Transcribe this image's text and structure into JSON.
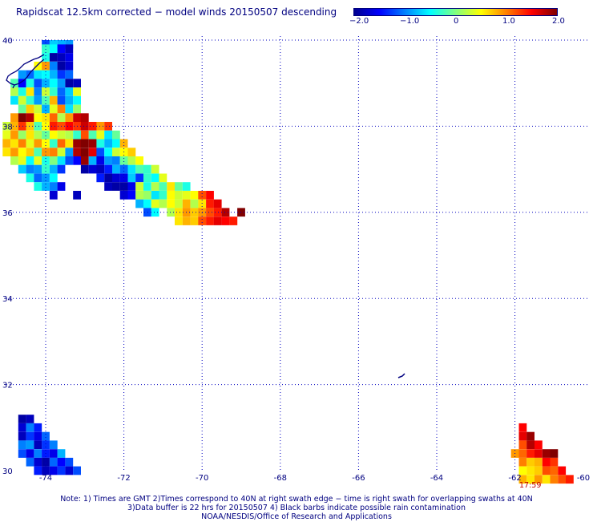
{
  "title": "Rapidscat 12.5km corrected − model winds 20150507 descending",
  "colorbar": {
    "labels": [
      "−2.0",
      "−1.0",
      "0",
      "1.0",
      "2.0"
    ],
    "min": -2.0,
    "max": 2.0,
    "colors": [
      "#00008f",
      "#0000ff",
      "#0080ff",
      "#00ffff",
      "#80ff80",
      "#ffff00",
      "#ff8000",
      "#ff0000",
      "#800000"
    ]
  },
  "map": {
    "lon_range": [
      -75,
      -60
    ],
    "lat_range": [
      30,
      40
    ],
    "lon_ticks": [
      "-74",
      "-72",
      "-70",
      "-68",
      "-66",
      "-64",
      "-62",
      "-60"
    ],
    "lat_ticks": [
      "40",
      "38",
      "36",
      "34",
      "32",
      "30"
    ],
    "gridline_color": "#0000c0"
  },
  "swath_cells": [
    [
      -74.0,
      39.9,
      -1.2
    ],
    [
      -73.8,
      39.9,
      -0.7
    ],
    [
      -73.6,
      39.9,
      -0.8
    ],
    [
      -73.4,
      39.9,
      -0.9
    ],
    [
      -74.0,
      39.8,
      -0.3
    ],
    [
      -73.8,
      39.8,
      -0.5
    ],
    [
      -73.6,
      39.8,
      -1.5
    ],
    [
      -73.4,
      39.8,
      -1.8
    ],
    [
      -74.0,
      39.6,
      -0.4
    ],
    [
      -73.8,
      39.6,
      -1.9
    ],
    [
      -73.6,
      39.6,
      -1.8
    ],
    [
      -73.4,
      39.6,
      -1.6
    ],
    [
      -74.2,
      39.4,
      0.5
    ],
    [
      -74.0,
      39.4,
      0.9
    ],
    [
      -73.8,
      39.4,
      -1.0
    ],
    [
      -73.6,
      39.4,
      -1.9
    ],
    [
      -73.4,
      39.4,
      -1.7
    ],
    [
      -74.6,
      39.2,
      -0.9
    ],
    [
      -74.4,
      39.2,
      -1.1
    ],
    [
      -74.2,
      39.2,
      -0.6
    ],
    [
      -74.0,
      39.2,
      -0.5
    ],
    [
      -73.8,
      39.2,
      -0.8
    ],
    [
      -73.6,
      39.2,
      -1.3
    ],
    [
      -73.4,
      39.2,
      -1.1
    ],
    [
      -74.8,
      39.0,
      -0.2
    ],
    [
      -74.6,
      39.0,
      -1.5
    ],
    [
      -74.4,
      39.0,
      -0.4
    ],
    [
      -74.2,
      39.0,
      -1.2
    ],
    [
      -74.0,
      39.0,
      -0.8
    ],
    [
      -73.8,
      39.0,
      -0.5
    ],
    [
      -73.6,
      39.0,
      -0.9
    ],
    [
      -73.4,
      39.0,
      -1.9
    ],
    [
      -73.2,
      39.0,
      -1.8
    ],
    [
      -74.8,
      38.8,
      0.2
    ],
    [
      -74.6,
      38.8,
      -0.4
    ],
    [
      -74.4,
      38.8,
      0.6
    ],
    [
      -74.2,
      38.8,
      -1.0
    ],
    [
      -74.0,
      38.8,
      0.3
    ],
    [
      -73.8,
      38.8,
      -0.3
    ],
    [
      -73.6,
      38.8,
      -1.1
    ],
    [
      -73.4,
      38.8,
      -0.7
    ],
    [
      -73.2,
      38.8,
      0.4
    ],
    [
      -74.8,
      38.6,
      -0.6
    ],
    [
      -74.6,
      38.6,
      0.3
    ],
    [
      -74.4,
      38.6,
      -0.3
    ],
    [
      -74.2,
      38.6,
      -0.9
    ],
    [
      -74.0,
      38.6,
      -0.2
    ],
    [
      -73.8,
      38.6,
      0.8
    ],
    [
      -73.6,
      38.6,
      -1.2
    ],
    [
      -73.4,
      38.6,
      -0.8
    ],
    [
      -73.2,
      38.6,
      -0.5
    ],
    [
      -74.6,
      38.4,
      -0.1
    ],
    [
      -74.4,
      38.4,
      0.7
    ],
    [
      -74.2,
      38.4,
      0.3
    ],
    [
      -74.0,
      38.4,
      -0.8
    ],
    [
      -73.8,
      38.4,
      0.4
    ],
    [
      -73.6,
      38.4,
      1.0
    ],
    [
      -73.4,
      38.4,
      -0.6
    ],
    [
      -73.2,
      38.4,
      0.1
    ],
    [
      -74.8,
      38.2,
      0.9
    ],
    [
      -74.6,
      38.2,
      2.0
    ],
    [
      -74.4,
      38.2,
      1.8
    ],
    [
      -74.2,
      38.2,
      0.5
    ],
    [
      -74.0,
      38.2,
      0.6
    ],
    [
      -73.8,
      38.2,
      1.1
    ],
    [
      -73.6,
      38.2,
      0.2
    ],
    [
      -73.4,
      38.2,
      0.9
    ],
    [
      -73.2,
      38.2,
      1.7
    ],
    [
      -73.0,
      38.2,
      1.8
    ],
    [
      -75.0,
      38.0,
      0.3
    ],
    [
      -74.8,
      38.0,
      0.8
    ],
    [
      -74.6,
      38.0,
      1.3
    ],
    [
      -74.4,
      38.0,
      0.7
    ],
    [
      -74.2,
      38.0,
      -0.2
    ],
    [
      -74.0,
      38.0,
      0.5
    ],
    [
      -73.8,
      38.0,
      1.4
    ],
    [
      -73.6,
      38.0,
      1.2
    ],
    [
      -73.4,
      38.0,
      1.5
    ],
    [
      -73.2,
      38.0,
      1.3
    ],
    [
      -73.0,
      38.0,
      1.7
    ],
    [
      -72.8,
      38.0,
      1.4
    ],
    [
      -72.6,
      38.0,
      0.9
    ],
    [
      -72.4,
      38.0,
      1.3
    ],
    [
      -75.0,
      37.8,
      0.4
    ],
    [
      -74.8,
      37.8,
      0.9
    ],
    [
      -74.6,
      37.8,
      0.1
    ],
    [
      -74.4,
      37.8,
      0.6
    ],
    [
      -74.2,
      37.8,
      0.2
    ],
    [
      -74.0,
      37.8,
      -0.1
    ],
    [
      -73.8,
      37.8,
      0.5
    ],
    [
      -73.6,
      37.8,
      0.3
    ],
    [
      -73.4,
      37.8,
      0.2
    ],
    [
      -73.2,
      37.8,
      -0.3
    ],
    [
      -73.0,
      37.8,
      1.2
    ],
    [
      -72.8,
      37.8,
      -0.2
    ],
    [
      -72.6,
      37.8,
      0.4
    ],
    [
      -72.4,
      37.8,
      -0.6
    ],
    [
      -72.2,
      37.8,
      -0.1
    ],
    [
      -75.0,
      37.6,
      0.8
    ],
    [
      -74.8,
      37.6,
      0.6
    ],
    [
      -74.6,
      37.6,
      1.0
    ],
    [
      -74.4,
      37.6,
      0.4
    ],
    [
      -74.2,
      37.6,
      0.9
    ],
    [
      -74.0,
      37.6,
      0.5
    ],
    [
      -73.8,
      37.6,
      -0.3
    ],
    [
      -73.6,
      37.6,
      1.1
    ],
    [
      -73.4,
      37.6,
      0.6
    ],
    [
      -73.2,
      37.6,
      1.9
    ],
    [
      -73.0,
      37.6,
      2.0
    ],
    [
      -72.8,
      37.6,
      1.9
    ],
    [
      -72.6,
      37.6,
      -0.4
    ],
    [
      -72.4,
      37.6,
      -0.8
    ],
    [
      -72.2,
      37.6,
      -0.5
    ],
    [
      -72.0,
      37.6,
      0.8
    ],
    [
      -75.0,
      37.4,
      0.6
    ],
    [
      -74.8,
      37.4,
      0.9
    ],
    [
      -74.6,
      37.4,
      0.5
    ],
    [
      -74.4,
      37.4,
      0.7
    ],
    [
      -74.2,
      37.4,
      -0.2
    ],
    [
      -74.0,
      37.4,
      0.9
    ],
    [
      -73.8,
      37.4,
      1.0
    ],
    [
      -73.6,
      37.4,
      0.3
    ],
    [
      -73.4,
      37.4,
      -0.9
    ],
    [
      -73.2,
      37.4,
      1.8
    ],
    [
      -73.0,
      37.4,
      2.0
    ],
    [
      -72.8,
      37.4,
      1.6
    ],
    [
      -72.6,
      37.4,
      -1.2
    ],
    [
      -72.4,
      37.4,
      -0.5
    ],
    [
      -72.2,
      37.4,
      0.3
    ],
    [
      -72.0,
      37.4,
      0.5
    ],
    [
      -71.8,
      37.4,
      0.7
    ],
    [
      -74.8,
      37.2,
      0.2
    ],
    [
      -74.6,
      37.2,
      0.4
    ],
    [
      -74.4,
      37.2,
      -0.5
    ],
    [
      -74.2,
      37.2,
      0.4
    ],
    [
      -74.0,
      37.2,
      -0.4
    ],
    [
      -73.8,
      37.2,
      0.0
    ],
    [
      -73.6,
      37.2,
      -0.6
    ],
    [
      -73.4,
      37.2,
      -1.2
    ],
    [
      -73.2,
      37.2,
      -1.5
    ],
    [
      -73.0,
      37.2,
      1.9
    ],
    [
      -72.8,
      37.2,
      -0.8
    ],
    [
      -72.6,
      37.2,
      -1.6
    ],
    [
      -72.4,
      37.2,
      -0.9
    ],
    [
      -72.2,
      37.2,
      -1.0
    ],
    [
      -72.0,
      37.2,
      -0.1
    ],
    [
      -71.8,
      37.2,
      0.2
    ],
    [
      -71.6,
      37.2,
      0.5
    ],
    [
      -74.6,
      37.0,
      -0.7
    ],
    [
      -74.4,
      37.0,
      -1.0
    ],
    [
      -74.2,
      37.0,
      -0.9
    ],
    [
      -74.0,
      37.0,
      -0.3
    ],
    [
      -73.8,
      37.0,
      -0.8
    ],
    [
      -73.6,
      37.0,
      -1.3
    ],
    [
      -73.0,
      37.0,
      -1.9
    ],
    [
      -72.8,
      37.0,
      -1.7
    ],
    [
      -72.6,
      37.0,
      -1.8
    ],
    [
      -72.4,
      37.0,
      -1.4
    ],
    [
      -72.2,
      37.0,
      -0.8
    ],
    [
      -72.0,
      37.0,
      -1.1
    ],
    [
      -71.8,
      37.0,
      -0.6
    ],
    [
      -71.6,
      37.0,
      -0.2
    ],
    [
      -71.4,
      37.0,
      -0.3
    ],
    [
      -71.2,
      37.0,
      0.3
    ],
    [
      -74.4,
      36.8,
      -0.4
    ],
    [
      -74.2,
      36.8,
      -1.1
    ],
    [
      -74.0,
      36.8,
      -0.9
    ],
    [
      -73.8,
      36.8,
      -0.5
    ],
    [
      -72.6,
      36.8,
      -1.4
    ],
    [
      -72.4,
      36.8,
      -1.9
    ],
    [
      -72.2,
      36.8,
      -1.7
    ],
    [
      -72.0,
      36.8,
      -1.6
    ],
    [
      -71.8,
      36.8,
      -0.7
    ],
    [
      -71.6,
      36.8,
      -1.3
    ],
    [
      -71.4,
      36.8,
      -0.3
    ],
    [
      -71.2,
      36.8,
      -0.5
    ],
    [
      -71.0,
      36.8,
      0.4
    ],
    [
      -74.2,
      36.6,
      -0.4
    ],
    [
      -74.0,
      36.6,
      -0.8
    ],
    [
      -73.8,
      36.6,
      -1.0
    ],
    [
      -73.6,
      36.6,
      -1.6
    ],
    [
      -72.4,
      36.6,
      -1.8
    ],
    [
      -72.2,
      36.6,
      -1.9
    ],
    [
      -72.0,
      36.6,
      -1.9
    ],
    [
      -71.8,
      36.6,
      -1.6
    ],
    [
      -71.6,
      36.6,
      0.3
    ],
    [
      -71.4,
      36.6,
      -0.4
    ],
    [
      -71.2,
      36.6,
      0.2
    ],
    [
      -71.0,
      36.6,
      -0.2
    ],
    [
      -70.8,
      36.6,
      0.6
    ],
    [
      -70.6,
      36.6,
      -0.1
    ],
    [
      -70.4,
      36.6,
      -0.4
    ],
    [
      -73.8,
      36.4,
      -1.7
    ],
    [
      -73.2,
      36.4,
      -1.8
    ],
    [
      -72.0,
      36.4,
      -1.7
    ],
    [
      -71.8,
      36.4,
      -1.5
    ],
    [
      -71.6,
      36.4,
      0.2
    ],
    [
      -71.4,
      36.4,
      0.1
    ],
    [
      -71.2,
      36.4,
      -0.6
    ],
    [
      -71.0,
      36.4,
      -0.3
    ],
    [
      -70.8,
      36.4,
      0.5
    ],
    [
      -70.6,
      36.4,
      0.3
    ],
    [
      -70.4,
      36.4,
      0.4
    ],
    [
      -70.2,
      36.4,
      0.5
    ],
    [
      -70.0,
      36.4,
      1.2
    ],
    [
      -69.8,
      36.4,
      1.5
    ],
    [
      -71.6,
      36.2,
      -0.8
    ],
    [
      -71.4,
      36.2,
      -0.5
    ],
    [
      -71.2,
      36.2,
      0.4
    ],
    [
      -71.0,
      36.2,
      0.2
    ],
    [
      -70.8,
      36.2,
      0.5
    ],
    [
      -70.6,
      36.2,
      0.3
    ],
    [
      -70.4,
      36.2,
      0.8
    ],
    [
      -70.2,
      36.2,
      0.2
    ],
    [
      -70.0,
      36.2,
      0.6
    ],
    [
      -69.8,
      36.2,
      1.4
    ],
    [
      -69.6,
      36.2,
      1.6
    ],
    [
      -71.4,
      36.0,
      -1.2
    ],
    [
      -71.2,
      36.0,
      -0.5
    ],
    [
      -70.8,
      36.0,
      0.2
    ],
    [
      -70.6,
      36.0,
      0.6
    ],
    [
      -70.4,
      36.0,
      0.9
    ],
    [
      -70.2,
      36.0,
      0.7
    ],
    [
      -70.0,
      36.0,
      0.9
    ],
    [
      -69.8,
      36.0,
      1.2
    ],
    [
      -69.6,
      36.0,
      1.4
    ],
    [
      -69.4,
      36.0,
      1.8
    ],
    [
      -69.0,
      36.0,
      2.0
    ],
    [
      -70.6,
      35.8,
      0.6
    ],
    [
      -70.4,
      35.8,
      0.8
    ],
    [
      -70.2,
      35.8,
      0.7
    ],
    [
      -70.0,
      35.8,
      1.2
    ],
    [
      -69.8,
      35.8,
      1.4
    ],
    [
      -69.6,
      35.8,
      1.6
    ],
    [
      -69.4,
      35.8,
      1.5
    ],
    [
      -69.2,
      35.8,
      1.4
    ],
    [
      -74.6,
      31.2,
      -1.9
    ],
    [
      -74.4,
      31.2,
      -1.8
    ],
    [
      -74.6,
      31.0,
      -1.7
    ],
    [
      -74.4,
      31.0,
      -1.0
    ],
    [
      -74.2,
      31.0,
      -1.4
    ],
    [
      -74.6,
      30.8,
      -1.8
    ],
    [
      -74.4,
      30.8,
      -1.3
    ],
    [
      -74.2,
      30.8,
      -1.6
    ],
    [
      -74.0,
      30.8,
      -1.1
    ],
    [
      -74.6,
      30.6,
      -1.0
    ],
    [
      -74.4,
      30.6,
      -0.9
    ],
    [
      -74.2,
      30.6,
      -1.8
    ],
    [
      -74.0,
      30.6,
      -1.3
    ],
    [
      -73.8,
      30.6,
      -1.0
    ],
    [
      -74.6,
      30.4,
      -1.2
    ],
    [
      -74.4,
      30.4,
      -1.6
    ],
    [
      -74.2,
      30.4,
      -1.0
    ],
    [
      -74.0,
      30.4,
      -1.4
    ],
    [
      -73.8,
      30.4,
      -1.6
    ],
    [
      -73.6,
      30.4,
      -0.8
    ],
    [
      -74.4,
      30.2,
      -1.1
    ],
    [
      -74.2,
      30.2,
      -1.7
    ],
    [
      -74.0,
      30.2,
      -1.9
    ],
    [
      -73.8,
      30.2,
      -1.1
    ],
    [
      -73.6,
      30.2,
      -1.5
    ],
    [
      -73.4,
      30.2,
      -1.2
    ],
    [
      -74.2,
      30.0,
      -1.4
    ],
    [
      -74.0,
      30.0,
      -1.8
    ],
    [
      -73.8,
      30.0,
      -1.6
    ],
    [
      -73.6,
      30.0,
      -1.3
    ],
    [
      -73.4,
      30.0,
      -1.7
    ],
    [
      -73.2,
      30.0,
      -1.2
    ],
    [
      -61.8,
      31.0,
      1.5
    ],
    [
      -61.8,
      30.8,
      1.6
    ],
    [
      -61.6,
      30.8,
      1.9
    ],
    [
      -61.8,
      30.6,
      1.2
    ],
    [
      -61.6,
      30.6,
      1.8
    ],
    [
      -61.4,
      30.6,
      1.5
    ],
    [
      -62.0,
      30.4,
      0.9
    ],
    [
      -61.8,
      30.4,
      1.1
    ],
    [
      -61.6,
      30.4,
      1.4
    ],
    [
      -61.4,
      30.4,
      1.6
    ],
    [
      -61.2,
      30.4,
      1.9
    ],
    [
      -61.0,
      30.4,
      2.0
    ],
    [
      -61.8,
      30.2,
      1.0
    ],
    [
      -61.6,
      30.2,
      0.7
    ],
    [
      -61.4,
      30.2,
      0.8
    ],
    [
      -61.2,
      30.2,
      1.5
    ],
    [
      -61.0,
      30.2,
      1.3
    ],
    [
      -61.8,
      30.0,
      0.5
    ],
    [
      -61.6,
      30.0,
      0.6
    ],
    [
      -61.4,
      30.0,
      0.7
    ],
    [
      -61.2,
      30.0,
      1.2
    ],
    [
      -61.0,
      30.0,
      1.1
    ],
    [
      -60.8,
      30.0,
      1.5
    ],
    [
      -61.8,
      29.8,
      0.8
    ],
    [
      -61.6,
      29.8,
      0.6
    ],
    [
      -61.4,
      29.8,
      0.9
    ],
    [
      -61.2,
      29.8,
      0.6
    ],
    [
      -61.0,
      29.8,
      1.0
    ],
    [
      -60.8,
      29.8,
      1.2
    ],
    [
      -60.6,
      29.8,
      1.4
    ]
  ],
  "time_label": "17:59",
  "notes": [
    "Note: 1) Times are GMT 2)Times correspond to 40N at right swath edge − time is right swath for overlapping swaths at 40N",
    "3)Data buffer is 22 hrs for 20150507 4) Black barbs indicate possible rain contamination",
    "NOAA/NESDIS/Office of Research and Applications"
  ]
}
